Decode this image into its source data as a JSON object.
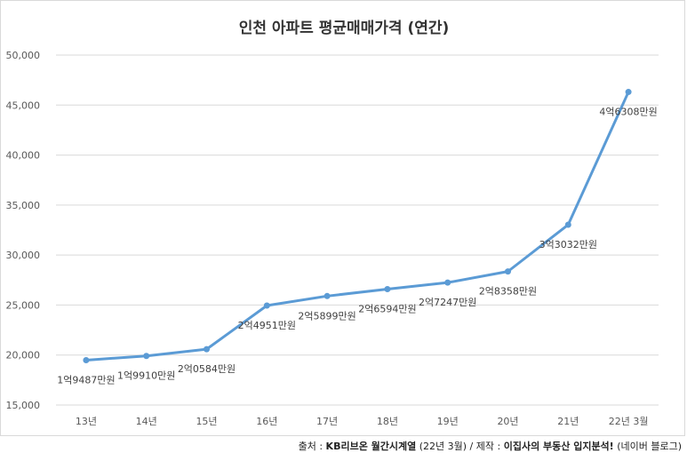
{
  "chart_data": {
    "type": "line",
    "title": "인천 아파트 평균매매가격 (연간)",
    "xlabel": "",
    "ylabel": "",
    "categories": [
      "13년",
      "14년",
      "15년",
      "16년",
      "17년",
      "18년",
      "19년",
      "20년",
      "21년",
      "22년 3월"
    ],
    "series": [
      {
        "values": [
          19487,
          19910,
          20584,
          24951,
          25899,
          26594,
          27247,
          28358,
          33032,
          46308
        ],
        "labels": [
          "1억9487만원",
          "1억9910만원",
          "2억0584만원",
          "2억4951만원",
          "2억5899만원",
          "2억6594만원",
          "2억7247만원",
          "2억8358만원",
          "3억3032만원",
          "4억6308만원"
        ]
      }
    ],
    "ylim": [
      15000,
      50000
    ],
    "yticks": [
      15000,
      20000,
      25000,
      30000,
      35000,
      40000,
      45000,
      50000
    ],
    "ytick_labels": [
      "15,000",
      "20,000",
      "25,000",
      "30,000",
      "35,000",
      "40,000",
      "45,000",
      "50,000"
    ],
    "grid": true,
    "legend": "none",
    "line_color": "#5b9bd5",
    "grid_color": "#d9d9d9"
  },
  "source": {
    "prefix": "출처 : ",
    "kb": "KB리브온 월간시계열",
    "kb_paren": " (22년 3월) / 제작 : ",
    "author": "이집사의 부동산 입지분석!",
    "suffix": " (네이버 블로그)"
  }
}
